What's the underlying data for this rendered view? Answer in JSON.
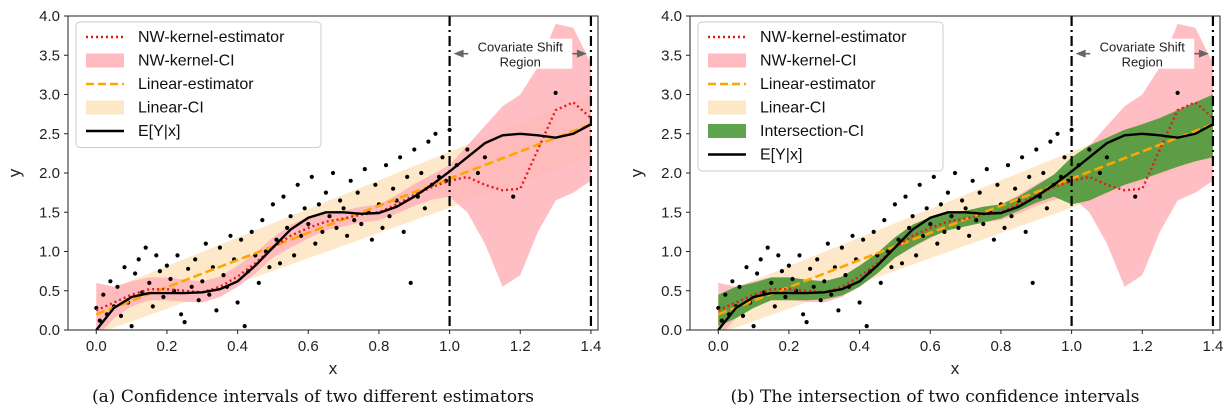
{
  "chart_data": [
    {
      "type": "line",
      "caption": "(a)  Confidence intervals of two different estimators",
      "xlabel": "x",
      "ylabel": "y",
      "xlim": [
        -0.08,
        1.42
      ],
      "ylim": [
        0.0,
        4.0
      ],
      "xticks": [
        "0.0",
        "0.2",
        "0.4",
        "0.6",
        "0.8",
        "1.0",
        "1.2",
        "1.4"
      ],
      "yticks": [
        "0.0",
        "0.5",
        "1.0",
        "1.5",
        "2.0",
        "2.5",
        "3.0",
        "3.5",
        "4.0"
      ],
      "grid": false,
      "legend_position": "top-left",
      "annotation": {
        "text_line1": "Covariate Shift",
        "text_line2": "Region",
        "x_start": 1.0,
        "x_end": 1.4
      },
      "vlines": [
        1.0,
        1.4
      ],
      "series": [
        {
          "name": "NW-kernel-estimator",
          "style": "dotted",
          "color": "#e41a1c",
          "x": [
            0.0,
            0.05,
            0.1,
            0.15,
            0.2,
            0.25,
            0.3,
            0.35,
            0.4,
            0.45,
            0.5,
            0.55,
            0.6,
            0.65,
            0.7,
            0.75,
            0.8,
            0.85,
            0.9,
            0.95,
            1.0,
            1.05,
            1.1,
            1.15,
            1.2,
            1.25,
            1.3,
            1.35,
            1.4
          ],
          "y": [
            0.25,
            0.35,
            0.45,
            0.52,
            0.52,
            0.5,
            0.48,
            0.55,
            0.68,
            0.85,
            1.05,
            1.2,
            1.3,
            1.38,
            1.42,
            1.47,
            1.5,
            1.6,
            1.72,
            1.82,
            1.9,
            1.95,
            1.85,
            1.78,
            1.8,
            2.3,
            2.8,
            2.9,
            2.7
          ]
        },
        {
          "name": "NW-kernel-CI",
          "style": "band",
          "color": "#ffb3b8",
          "x": [
            0.0,
            0.05,
            0.1,
            0.15,
            0.2,
            0.25,
            0.3,
            0.35,
            0.4,
            0.45,
            0.5,
            0.55,
            0.6,
            0.65,
            0.7,
            0.75,
            0.8,
            0.85,
            0.9,
            0.95,
            1.0,
            1.05,
            1.1,
            1.15,
            1.2,
            1.25,
            1.3,
            1.35,
            1.4
          ],
          "lower": [
            -0.1,
            0.15,
            0.3,
            0.38,
            0.38,
            0.36,
            0.35,
            0.42,
            0.55,
            0.72,
            0.92,
            1.05,
            1.17,
            1.27,
            1.32,
            1.37,
            1.4,
            1.48,
            1.58,
            1.66,
            1.7,
            1.5,
            1.1,
            0.55,
            0.7,
            1.25,
            1.65,
            1.75,
            1.9
          ],
          "upper": [
            0.6,
            0.55,
            0.62,
            0.67,
            0.67,
            0.64,
            0.62,
            0.68,
            0.82,
            0.98,
            1.18,
            1.34,
            1.44,
            1.5,
            1.52,
            1.57,
            1.6,
            1.72,
            1.86,
            1.98,
            2.1,
            2.35,
            2.6,
            2.85,
            3.0,
            3.35,
            3.9,
            3.85,
            3.4
          ]
        },
        {
          "name": "Linear-estimator",
          "style": "dashed",
          "color": "#ffa500",
          "x": [
            0.0,
            1.4
          ],
          "y": [
            0.2,
            2.62
          ]
        },
        {
          "name": "Linear-CI",
          "style": "band",
          "color": "#fde5bf",
          "x": [
            0.0,
            1.4
          ],
          "lower": [
            -0.05,
            2.2
          ],
          "upper": [
            0.45,
            3.0
          ]
        },
        {
          "name": "E[Y|x]",
          "style": "solid",
          "color": "#000000",
          "x": [
            0.0,
            0.05,
            0.1,
            0.15,
            0.2,
            0.25,
            0.3,
            0.35,
            0.4,
            0.45,
            0.5,
            0.55,
            0.6,
            0.65,
            0.7,
            0.75,
            0.8,
            0.85,
            0.9,
            0.95,
            1.0,
            1.05,
            1.1,
            1.15,
            1.2,
            1.25,
            1.3,
            1.35,
            1.4
          ],
          "y": [
            0.0,
            0.28,
            0.42,
            0.47,
            0.47,
            0.47,
            0.48,
            0.52,
            0.62,
            0.82,
            1.05,
            1.28,
            1.43,
            1.5,
            1.5,
            1.48,
            1.49,
            1.57,
            1.7,
            1.85,
            2.02,
            2.2,
            2.38,
            2.48,
            2.5,
            2.48,
            2.45,
            2.5,
            2.62
          ]
        }
      ],
      "scatter": {
        "name": "samples",
        "color": "#000000",
        "points": [
          [
            0.0,
            0.28
          ],
          [
            0.01,
            0.12
          ],
          [
            0.02,
            0.45
          ],
          [
            0.03,
            0.2
          ],
          [
            0.04,
            0.62
          ],
          [
            0.05,
            0.3
          ],
          [
            0.06,
            0.55
          ],
          [
            0.07,
            0.18
          ],
          [
            0.08,
            0.8
          ],
          [
            0.09,
            0.35
          ],
          [
            0.1,
            0.05
          ],
          [
            0.11,
            0.72
          ],
          [
            0.12,
            0.9
          ],
          [
            0.13,
            0.48
          ],
          [
            0.14,
            1.05
          ],
          [
            0.15,
            0.6
          ],
          [
            0.16,
            0.3
          ],
          [
            0.17,
            0.95
          ],
          [
            0.18,
            0.75
          ],
          [
            0.19,
            0.42
          ],
          [
            0.2,
            0.82
          ],
          [
            0.21,
            0.65
          ],
          [
            0.22,
            0.5
          ],
          [
            0.23,
            0.95
          ],
          [
            0.24,
            0.2
          ],
          [
            0.25,
            0.1
          ],
          [
            0.26,
            0.78
          ],
          [
            0.27,
            0.55
          ],
          [
            0.28,
            0.9
          ],
          [
            0.29,
            0.38
          ],
          [
            0.3,
            0.62
          ],
          [
            0.31,
            1.1
          ],
          [
            0.32,
            0.45
          ],
          [
            0.33,
            0.8
          ],
          [
            0.34,
            0.25
          ],
          [
            0.35,
            1.05
          ],
          [
            0.36,
            0.7
          ],
          [
            0.37,
            0.55
          ],
          [
            0.38,
            1.2
          ],
          [
            0.39,
            0.9
          ],
          [
            0.4,
            0.35
          ],
          [
            0.41,
            1.15
          ],
          [
            0.42,
            0.05
          ],
          [
            0.43,
            0.75
          ],
          [
            0.44,
            1.25
          ],
          [
            0.45,
            0.95
          ],
          [
            0.46,
            0.6
          ],
          [
            0.47,
            1.4
          ],
          [
            0.48,
            1.0
          ],
          [
            0.49,
            0.8
          ],
          [
            0.5,
            1.6
          ],
          [
            0.51,
            1.15
          ],
          [
            0.52,
            0.85
          ],
          [
            0.53,
            1.7
          ],
          [
            0.54,
            1.3
          ],
          [
            0.55,
            1.45
          ],
          [
            0.56,
            0.95
          ],
          [
            0.57,
            1.85
          ],
          [
            0.58,
            1.2
          ],
          [
            0.59,
            1.55
          ],
          [
            0.6,
            1.35
          ],
          [
            0.61,
            1.95
          ],
          [
            0.62,
            1.1
          ],
          [
            0.63,
            1.6
          ],
          [
            0.64,
            1.25
          ],
          [
            0.65,
            1.75
          ],
          [
            0.66,
            1.45
          ],
          [
            0.67,
            2.0
          ],
          [
            0.68,
            1.3
          ],
          [
            0.69,
            1.65
          ],
          [
            0.7,
            1.55
          ],
          [
            0.71,
            1.2
          ],
          [
            0.72,
            1.9
          ],
          [
            0.73,
            1.4
          ],
          [
            0.74,
            1.75
          ],
          [
            0.75,
            1.35
          ],
          [
            0.76,
            2.05
          ],
          [
            0.77,
            1.5
          ],
          [
            0.78,
            1.15
          ],
          [
            0.79,
            1.85
          ],
          [
            0.8,
            1.6
          ],
          [
            0.81,
            1.3
          ],
          [
            0.82,
            2.1
          ],
          [
            0.83,
            1.45
          ],
          [
            0.84,
            1.8
          ],
          [
            0.85,
            1.65
          ],
          [
            0.86,
            2.2
          ],
          [
            0.87,
            1.25
          ],
          [
            0.88,
            1.95
          ],
          [
            0.89,
            0.6
          ],
          [
            0.9,
            2.3
          ],
          [
            0.91,
            1.7
          ],
          [
            0.92,
            2.0
          ],
          [
            0.93,
            1.55
          ],
          [
            0.94,
            2.4
          ],
          [
            0.95,
            1.85
          ],
          [
            0.96,
            2.5
          ],
          [
            0.97,
            1.95
          ],
          [
            0.98,
            2.2
          ],
          [
            0.99,
            1.9
          ],
          [
            1.0,
            2.55
          ],
          [
            1.02,
            2.1
          ],
          [
            1.05,
            2.3
          ],
          [
            1.08,
            2.0
          ],
          [
            1.1,
            2.2
          ],
          [
            1.18,
            1.7
          ],
          [
            1.3,
            3.02
          ]
        ]
      }
    },
    {
      "type": "line",
      "caption": "(b)  The intersection of two confidence intervals",
      "xlabel": "x",
      "ylabel": "y",
      "xlim": [
        -0.08,
        1.42
      ],
      "ylim": [
        0.0,
        4.0
      ],
      "xticks": [
        "0.0",
        "0.2",
        "0.4",
        "0.6",
        "0.8",
        "1.0",
        "1.2",
        "1.4"
      ],
      "yticks": [
        "0.0",
        "0.5",
        "1.0",
        "1.5",
        "2.0",
        "2.5",
        "3.0",
        "3.5",
        "4.0"
      ],
      "grid": false,
      "legend_position": "top-left",
      "annotation": {
        "text_line1": "Covariate Shift",
        "text_line2": "Region",
        "x_start": 1.0,
        "x_end": 1.4
      },
      "vlines": [
        1.0,
        1.4
      ],
      "series": [
        {
          "name": "NW-kernel-estimator",
          "style": "dotted",
          "color": "#e41a1c",
          "same_as": "panel_a"
        },
        {
          "name": "NW-kernel-CI",
          "style": "band",
          "color": "#ffb3b8",
          "same_as": "panel_a"
        },
        {
          "name": "Linear-estimator",
          "style": "dashed",
          "color": "#ffa500",
          "same_as": "panel_a"
        },
        {
          "name": "Linear-CI",
          "style": "band",
          "color": "#fde5bf",
          "same_as": "panel_a"
        },
        {
          "name": "Intersection-CI",
          "style": "band",
          "color": "#4a9a3a",
          "x": [
            0.0,
            0.05,
            0.1,
            0.15,
            0.2,
            0.25,
            0.3,
            0.35,
            0.4,
            0.45,
            0.5,
            0.55,
            0.6,
            0.65,
            0.7,
            0.75,
            0.8,
            0.85,
            0.9,
            0.95,
            1.0,
            1.05,
            1.1,
            1.15,
            1.2,
            1.25,
            1.3,
            1.35,
            1.4
          ],
          "lower": [
            0.05,
            0.15,
            0.28,
            0.38,
            0.38,
            0.38,
            0.39,
            0.44,
            0.55,
            0.72,
            0.92,
            1.06,
            1.18,
            1.27,
            1.32,
            1.37,
            1.42,
            1.52,
            1.62,
            1.7,
            1.6,
            1.65,
            1.75,
            1.85,
            1.92,
            2.0,
            2.08,
            2.15,
            2.2
          ],
          "upper": [
            0.45,
            0.55,
            0.6,
            0.67,
            0.67,
            0.64,
            0.62,
            0.68,
            0.82,
            0.98,
            1.18,
            1.34,
            1.44,
            1.5,
            1.52,
            1.57,
            1.6,
            1.7,
            1.84,
            1.98,
            2.2,
            2.35,
            2.45,
            2.55,
            2.62,
            2.7,
            2.8,
            2.9,
            3.0
          ]
        },
        {
          "name": "E[Y|x]",
          "style": "solid",
          "color": "#000000",
          "same_as": "panel_a"
        }
      ],
      "scatter": {
        "name": "samples",
        "same_as": "panel_a"
      }
    }
  ]
}
